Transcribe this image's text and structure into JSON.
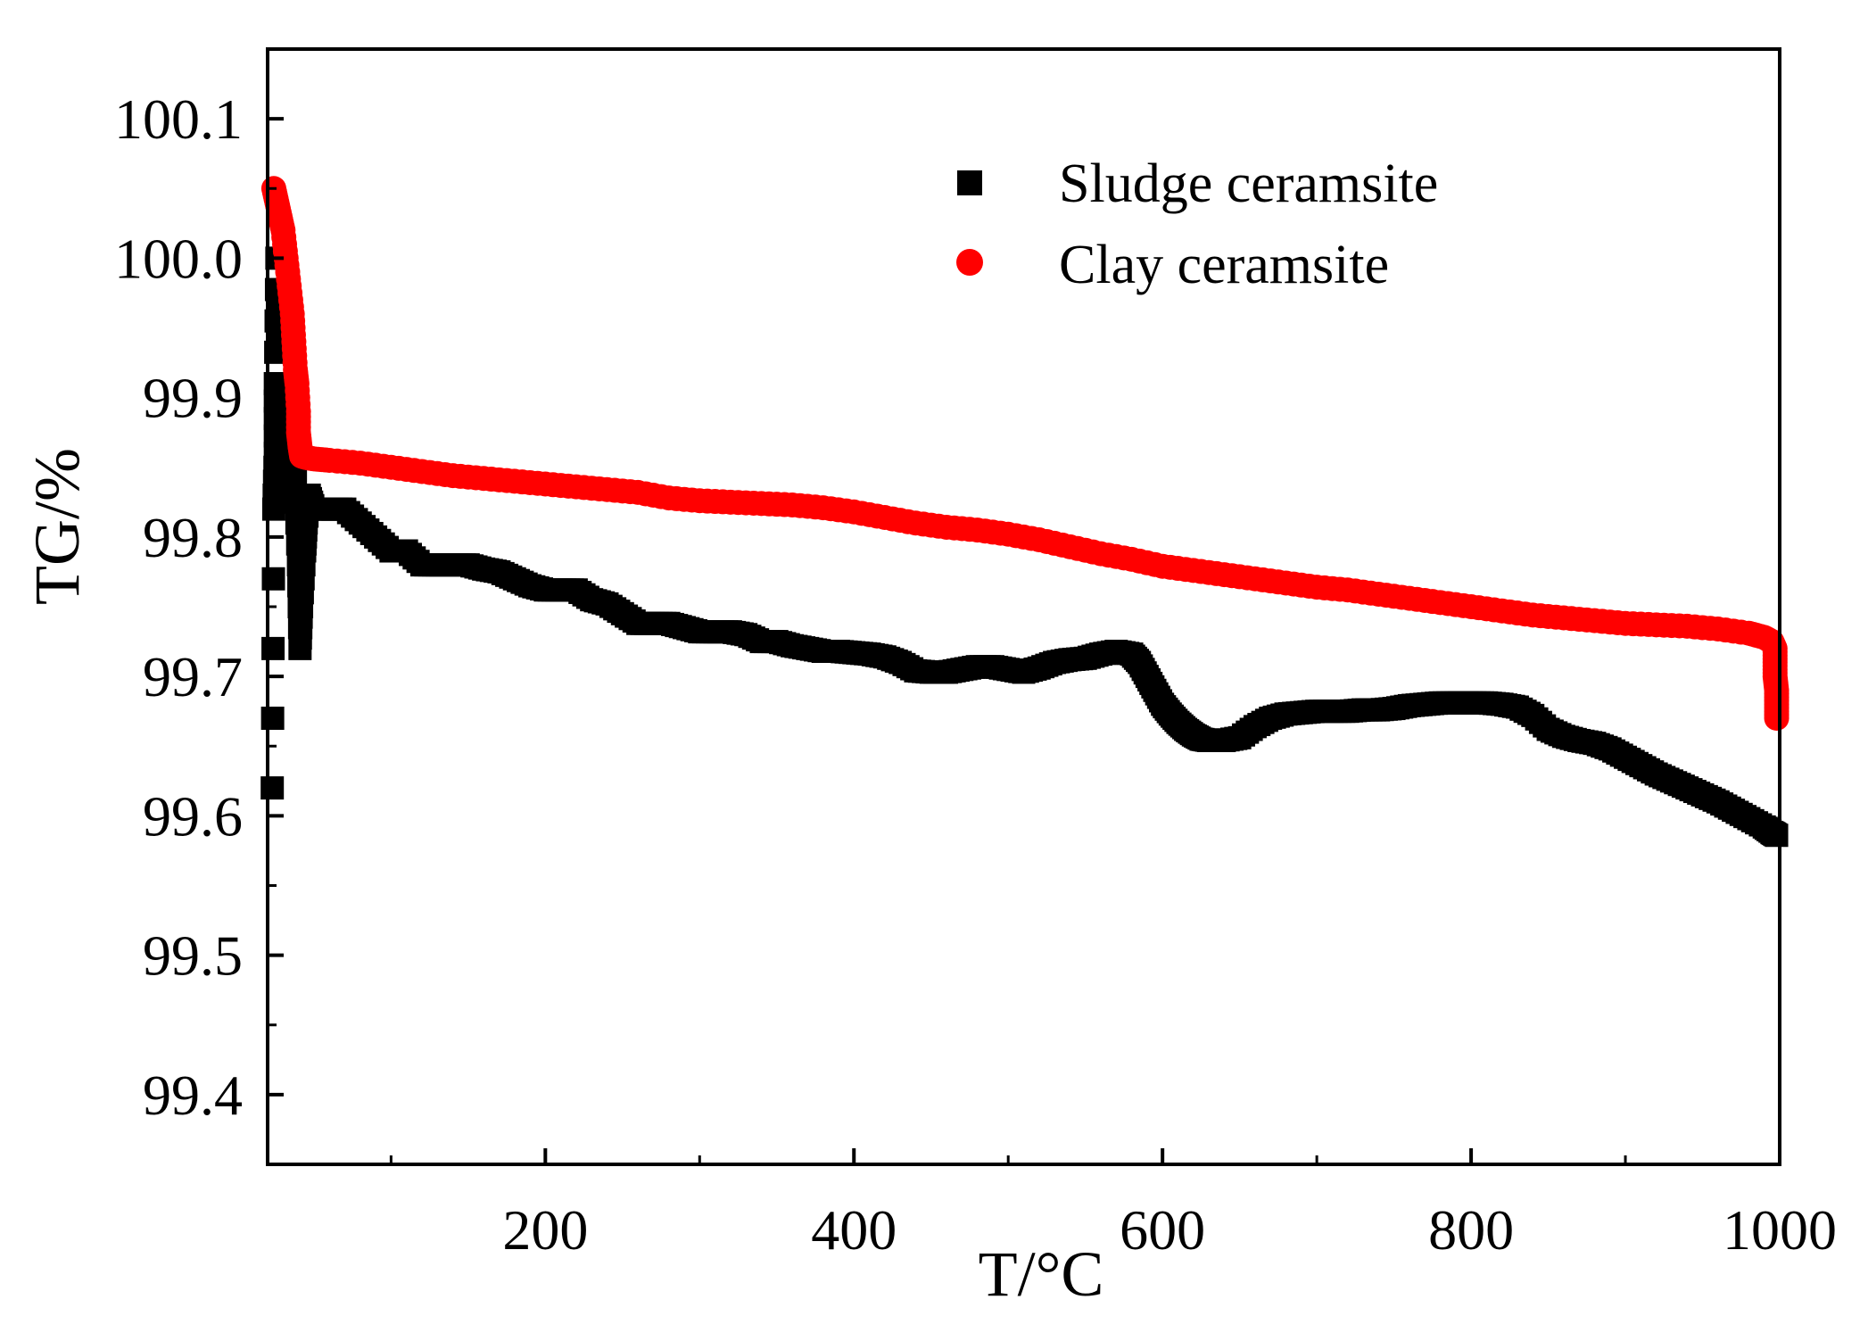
{
  "chart_data": {
    "type": "scatter",
    "title": "",
    "xlabel": "T/°C",
    "ylabel": "TG/%",
    "xlim": [
      20,
      1000
    ],
    "ylim": [
      99.35,
      100.15
    ],
    "x_ticks": [
      200,
      400,
      600,
      800,
      1000
    ],
    "x_tick_labels": [
      "200",
      "400",
      "600",
      "800",
      "1000"
    ],
    "y_ticks": [
      99.4,
      99.5,
      99.6,
      99.7,
      99.8,
      99.9,
      100.0,
      100.1
    ],
    "y_tick_labels": [
      "99.4",
      "99.5",
      "99.6",
      "99.7",
      "99.8",
      "99.9",
      "100.0",
      "100.1"
    ],
    "grid": false,
    "legend_position": "top-right",
    "series": [
      {
        "name": "Sludge ceramsite",
        "marker": "square",
        "color": "#000000",
        "points": [
          [
            23,
            99.62
          ],
          [
            24,
            99.82
          ],
          [
            25,
            99.86
          ],
          [
            25,
            99.91
          ],
          [
            26,
            100.0
          ],
          [
            28,
            99.88
          ],
          [
            30,
            99.9
          ],
          [
            33,
            99.88
          ],
          [
            36,
            99.86
          ],
          [
            38,
            99.84
          ],
          [
            40,
            99.78
          ],
          [
            41,
            99.72
          ],
          [
            42,
            99.75
          ],
          [
            44,
            99.79
          ],
          [
            45,
            99.81
          ],
          [
            47,
            99.83
          ],
          [
            50,
            99.82
          ],
          [
            60,
            99.82
          ],
          [
            70,
            99.82
          ],
          [
            80,
            99.81
          ],
          [
            90,
            99.8
          ],
          [
            100,
            99.79
          ],
          [
            110,
            99.79
          ],
          [
            120,
            99.78
          ],
          [
            130,
            99.78
          ],
          [
            140,
            99.78
          ],
          [
            150,
            99.78
          ],
          [
            160,
            99.777
          ],
          [
            170,
            99.775
          ],
          [
            180,
            99.77
          ],
          [
            190,
            99.765
          ],
          [
            200,
            99.762
          ],
          [
            210,
            99.762
          ],
          [
            220,
            99.762
          ],
          [
            230,
            99.755
          ],
          [
            240,
            99.752
          ],
          [
            250,
            99.745
          ],
          [
            260,
            99.738
          ],
          [
            270,
            99.738
          ],
          [
            280,
            99.738
          ],
          [
            290,
            99.735
          ],
          [
            300,
            99.732
          ],
          [
            310,
            99.732
          ],
          [
            320,
            99.732
          ],
          [
            330,
            99.73
          ],
          [
            340,
            99.725
          ],
          [
            350,
            99.725
          ],
          [
            360,
            99.722
          ],
          [
            370,
            99.72
          ],
          [
            380,
            99.718
          ],
          [
            390,
            99.718
          ],
          [
            400,
            99.717
          ],
          [
            410,
            99.716
          ],
          [
            420,
            99.714
          ],
          [
            430,
            99.71
          ],
          [
            440,
            99.704
          ],
          [
            450,
            99.703
          ],
          [
            460,
            99.703
          ],
          [
            470,
            99.705
          ],
          [
            480,
            99.707
          ],
          [
            490,
            99.707
          ],
          [
            500,
            99.705
          ],
          [
            510,
            99.703
          ],
          [
            520,
            99.706
          ],
          [
            530,
            99.71
          ],
          [
            540,
            99.712
          ],
          [
            550,
            99.713
          ],
          [
            560,
            99.716
          ],
          [
            570,
            99.718
          ],
          [
            580,
            99.716
          ],
          [
            585,
            99.71
          ],
          [
            590,
            99.7
          ],
          [
            595,
            99.69
          ],
          [
            600,
            99.68
          ],
          [
            605,
            99.673
          ],
          [
            610,
            99.667
          ],
          [
            615,
            99.662
          ],
          [
            620,
            99.658
          ],
          [
            625,
            99.655
          ],
          [
            630,
            99.654
          ],
          [
            640,
            99.654
          ],
          [
            650,
            99.656
          ],
          [
            660,
            99.664
          ],
          [
            670,
            99.67
          ],
          [
            680,
            99.673
          ],
          [
            690,
            99.674
          ],
          [
            700,
            99.675
          ],
          [
            710,
            99.675
          ],
          [
            720,
            99.675
          ],
          [
            730,
            99.676
          ],
          [
            740,
            99.676
          ],
          [
            750,
            99.677
          ],
          [
            760,
            99.679
          ],
          [
            770,
            99.68
          ],
          [
            780,
            99.681
          ],
          [
            790,
            99.681
          ],
          [
            800,
            99.681
          ],
          [
            810,
            99.681
          ],
          [
            820,
            99.68
          ],
          [
            830,
            99.678
          ],
          [
            840,
            99.672
          ],
          [
            850,
            99.662
          ],
          [
            860,
            99.657
          ],
          [
            870,
            99.654
          ],
          [
            880,
            99.652
          ],
          [
            890,
            99.648
          ],
          [
            900,
            99.642
          ],
          [
            910,
            99.636
          ],
          [
            920,
            99.63
          ],
          [
            930,
            99.625
          ],
          [
            940,
            99.62
          ],
          [
            950,
            99.615
          ],
          [
            960,
            99.61
          ],
          [
            970,
            99.604
          ],
          [
            980,
            99.598
          ],
          [
            990,
            99.592
          ],
          [
            995,
            99.588
          ],
          [
            998,
            99.586
          ]
        ]
      },
      {
        "name": "Clay ceramsite",
        "marker": "circle",
        "color": "#ff0000",
        "points": [
          [
            24,
            100.05
          ],
          [
            26,
            100.04
          ],
          [
            28,
            100.03
          ],
          [
            30,
            100.02
          ],
          [
            32,
            100.0
          ],
          [
            34,
            99.98
          ],
          [
            36,
            99.96
          ],
          [
            37,
            99.94
          ],
          [
            38,
            99.92
          ],
          [
            39,
            99.91
          ],
          [
            40,
            99.89
          ],
          [
            40,
            99.875
          ],
          [
            41,
            99.865
          ],
          [
            42,
            99.858
          ],
          [
            45,
            99.857
          ],
          [
            50,
            99.856
          ],
          [
            60,
            99.855
          ],
          [
            80,
            99.853
          ],
          [
            100,
            99.85
          ],
          [
            120,
            99.847
          ],
          [
            140,
            99.844
          ],
          [
            160,
            99.842
          ],
          [
            180,
            99.84
          ],
          [
            200,
            99.838
          ],
          [
            220,
            99.836
          ],
          [
            240,
            99.834
          ],
          [
            260,
            99.832
          ],
          [
            280,
            99.828
          ],
          [
            300,
            99.826
          ],
          [
            320,
            99.825
          ],
          [
            340,
            99.824
          ],
          [
            360,
            99.823
          ],
          [
            380,
            99.821
          ],
          [
            400,
            99.818
          ],
          [
            420,
            99.814
          ],
          [
            440,
            99.81
          ],
          [
            460,
            99.807
          ],
          [
            480,
            99.805
          ],
          [
            500,
            99.802
          ],
          [
            520,
            99.798
          ],
          [
            540,
            99.793
          ],
          [
            560,
            99.788
          ],
          [
            580,
            99.784
          ],
          [
            600,
            99.779
          ],
          [
            620,
            99.776
          ],
          [
            640,
            99.773
          ],
          [
            660,
            99.77
          ],
          [
            680,
            99.767
          ],
          [
            700,
            99.764
          ],
          [
            720,
            99.762
          ],
          [
            740,
            99.759
          ],
          [
            760,
            99.756
          ],
          [
            780,
            99.753
          ],
          [
            800,
            99.75
          ],
          [
            820,
            99.747
          ],
          [
            840,
            99.744
          ],
          [
            860,
            99.742
          ],
          [
            880,
            99.74
          ],
          [
            900,
            99.738
          ],
          [
            920,
            99.737
          ],
          [
            940,
            99.736
          ],
          [
            960,
            99.734
          ],
          [
            980,
            99.731
          ],
          [
            990,
            99.728
          ],
          [
            995,
            99.725
          ],
          [
            997,
            99.72
          ],
          [
            997,
            99.71
          ],
          [
            997,
            99.7
          ],
          [
            998,
            99.69
          ],
          [
            998,
            99.68
          ],
          [
            998,
            99.67
          ]
        ]
      }
    ]
  }
}
